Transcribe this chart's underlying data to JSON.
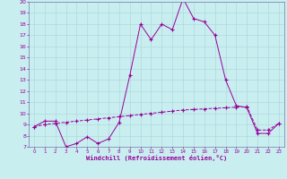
{
  "title": "",
  "xlabel": "Windchill (Refroidissement éolien,°C)",
  "background_color": "#c8eef0",
  "grid_color": "#b0d8dc",
  "line_color": "#990099",
  "spine_color": "#7777aa",
  "xlim": [
    -0.5,
    23.5
  ],
  "ylim": [
    7,
    20
  ],
  "xticks": [
    0,
    1,
    2,
    3,
    4,
    5,
    6,
    7,
    8,
    9,
    10,
    11,
    12,
    13,
    14,
    15,
    16,
    17,
    18,
    19,
    20,
    21,
    22,
    23
  ],
  "yticks": [
    7,
    8,
    9,
    10,
    11,
    12,
    13,
    14,
    15,
    16,
    17,
    18,
    19,
    20
  ],
  "series1_x": [
    0,
    1,
    2,
    3,
    4,
    5,
    6,
    7,
    8,
    9,
    10,
    11,
    12,
    13,
    14,
    15,
    16,
    17,
    18,
    19,
    20,
    21,
    22,
    23
  ],
  "series1_y": [
    8.8,
    9.3,
    9.3,
    7.0,
    7.3,
    7.9,
    7.3,
    7.7,
    9.2,
    13.4,
    18.0,
    16.6,
    18.0,
    17.5,
    20.3,
    18.5,
    18.2,
    17.0,
    13.0,
    10.7,
    10.5,
    8.2,
    8.2,
    9.1
  ],
  "series2_x": [
    0,
    1,
    2,
    3,
    4,
    5,
    6,
    7,
    8,
    9,
    10,
    11,
    12,
    13,
    14,
    15,
    16,
    17,
    18,
    19,
    20,
    21,
    22,
    23
  ],
  "series2_y": [
    8.8,
    9.0,
    9.1,
    9.2,
    9.3,
    9.4,
    9.5,
    9.6,
    9.7,
    9.8,
    9.9,
    10.0,
    10.1,
    10.2,
    10.3,
    10.35,
    10.4,
    10.45,
    10.5,
    10.55,
    10.6,
    8.5,
    8.5,
    9.1
  ]
}
